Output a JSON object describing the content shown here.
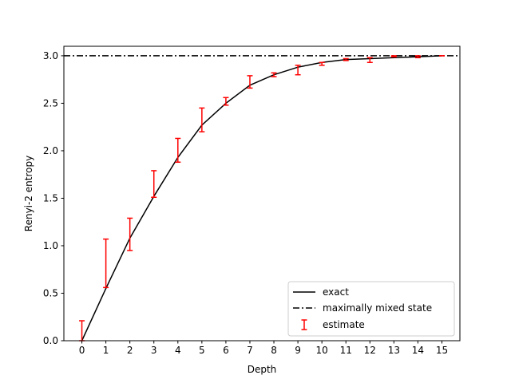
{
  "chart_data": {
    "type": "line",
    "xlabel": "Depth",
    "ylabel": "Renyi-2 entropy",
    "xlim": [
      -0.75,
      15.75
    ],
    "ylim": [
      0,
      3.1
    ],
    "xticks": [
      0,
      1,
      2,
      3,
      4,
      5,
      6,
      7,
      8,
      9,
      10,
      11,
      12,
      13,
      14,
      15
    ],
    "yticks": [
      0.0,
      0.5,
      1.0,
      1.5,
      2.0,
      2.5,
      3.0
    ],
    "ytick_labels": [
      "0.0",
      "0.5",
      "1.0",
      "1.5",
      "2.0",
      "2.5",
      "3.0"
    ],
    "grid": false,
    "legend_position": "lower-right",
    "colors": {
      "exact": "#000000",
      "mixed": "#000000",
      "estimate": "#ff0000"
    },
    "exact": {
      "name": "exact",
      "x": [
        0,
        1,
        2,
        3,
        4,
        5,
        6,
        7,
        8,
        9,
        10,
        11,
        12,
        13,
        14,
        15
      ],
      "y": [
        0.0,
        0.55,
        1.08,
        1.52,
        1.93,
        2.27,
        2.5,
        2.69,
        2.8,
        2.88,
        2.93,
        2.96,
        2.97,
        2.98,
        2.99,
        3.0
      ]
    },
    "mixed": {
      "name": "maximally mixed state",
      "y": 3.0
    },
    "estimate": {
      "name": "estimate",
      "x": [
        0,
        1,
        2,
        3,
        4,
        5,
        6,
        7,
        8,
        9,
        10,
        11,
        12,
        13,
        14,
        15
      ],
      "low": [
        0.0,
        0.56,
        0.95,
        1.51,
        1.88,
        2.2,
        2.48,
        2.66,
        2.78,
        2.8,
        2.9,
        2.95,
        2.93,
        2.99,
        2.98,
        3.0
      ],
      "high": [
        0.21,
        1.07,
        1.29,
        1.79,
        2.13,
        2.45,
        2.56,
        2.79,
        2.82,
        2.9,
        2.93,
        2.97,
        2.98,
        3.0,
        3.0,
        3.0
      ]
    }
  }
}
